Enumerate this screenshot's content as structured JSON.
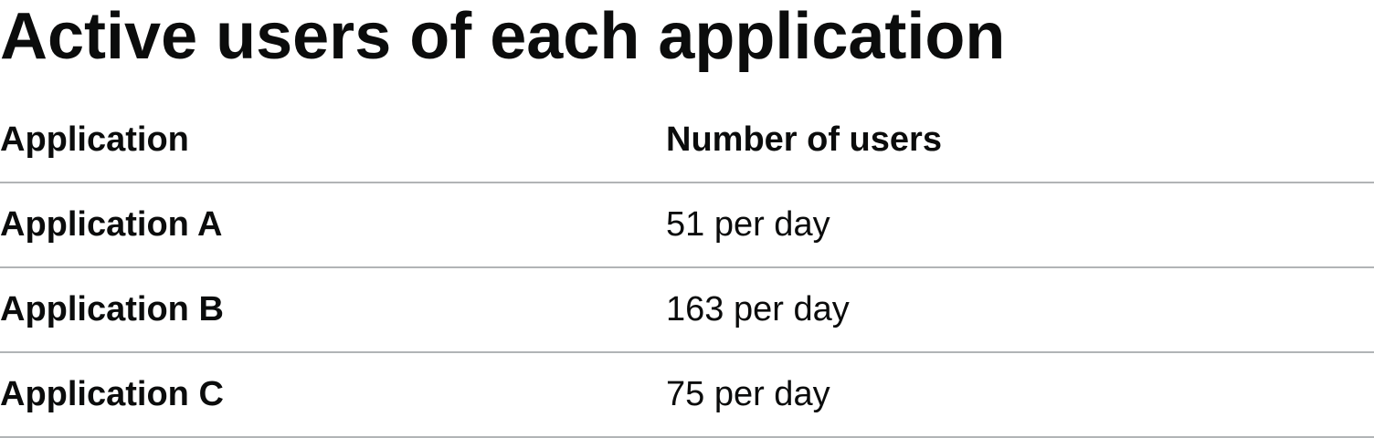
{
  "page": {
    "title": "Active users of each application"
  },
  "table": {
    "headers": {
      "application": "Application",
      "users": "Number of users"
    },
    "rows": [
      {
        "application": "Application A",
        "users": "51 per day"
      },
      {
        "application": "Application B",
        "users": "163 per day"
      },
      {
        "application": "Application C",
        "users": "75 per day"
      }
    ]
  },
  "colors": {
    "text": "#0b0c0c",
    "border": "#b1b4b6",
    "background": "#ffffff"
  }
}
